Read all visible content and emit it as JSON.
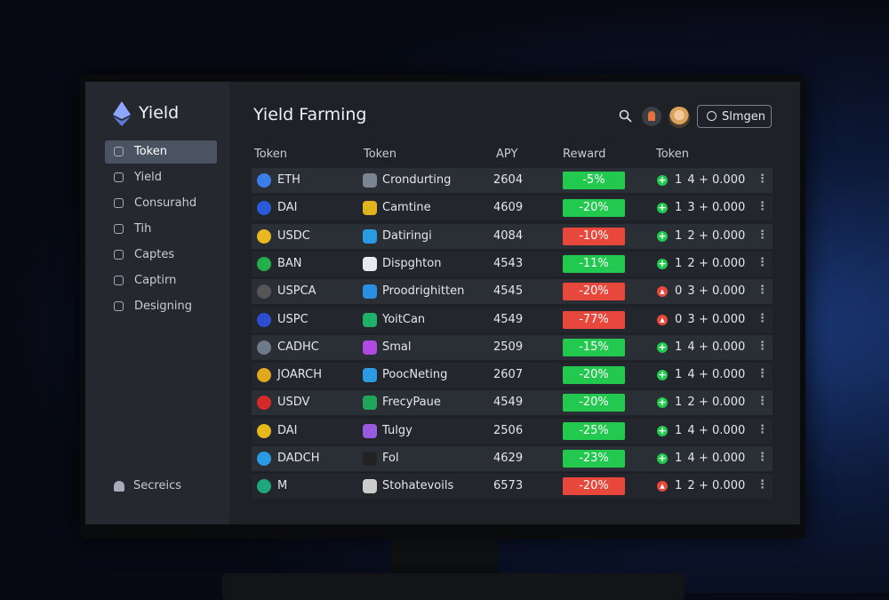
{
  "sidebar": {
    "brand": "Yield",
    "nav": [
      "Token",
      "Yield",
      "Consurahd",
      "Tih",
      "Captes",
      "Captirn",
      "Designing"
    ],
    "active": 0,
    "footer": "Secreics"
  },
  "header": {
    "title": "Yield Farming",
    "button": "Slmgen"
  },
  "table": {
    "columns": [
      "Token",
      "Token",
      "APY",
      "Reward",
      "Token"
    ],
    "rows": [
      {
        "token": "ETH",
        "pool": "Crondurting",
        "apy": 2604,
        "reward": "-5%",
        "reward_status": "positive",
        "trend": "up",
        "share": "1 4",
        "amount": "+ 0.000"
      },
      {
        "token": "DAI",
        "pool": "Camtine",
        "apy": 4609,
        "reward": "-20%",
        "reward_status": "positive",
        "trend": "up",
        "share": "1 3",
        "amount": "+ 0.000"
      },
      {
        "token": "USDC",
        "pool": "Datiringi",
        "apy": 4084,
        "reward": "-10%",
        "reward_status": "negative",
        "trend": "up",
        "share": "1 2",
        "amount": "+ 0.000"
      },
      {
        "token": "BAN",
        "pool": "Dispghton",
        "apy": 4543,
        "reward": "-11%",
        "reward_status": "positive",
        "trend": "up",
        "share": "1 2",
        "amount": "+ 0.000"
      },
      {
        "token": "USPCA",
        "pool": "Proodrighitten",
        "apy": 4545,
        "reward": "-20%",
        "reward_status": "negative",
        "trend": "down",
        "share": "0 3",
        "amount": "+ 0.000"
      },
      {
        "token": "USPC",
        "pool": "YoitCan",
        "apy": 4549,
        "reward": "-77%",
        "reward_status": "negative",
        "trend": "down",
        "share": "0 3",
        "amount": "+ 0.000"
      },
      {
        "token": "CADHC",
        "pool": "Smal",
        "apy": 2509,
        "reward": "-15%",
        "reward_status": "positive",
        "trend": "up",
        "share": "1 4",
        "amount": "+ 0.000"
      },
      {
        "token": "JOARCH",
        "pool": "PoocNeting",
        "apy": 2607,
        "reward": "-20%",
        "reward_status": "positive",
        "trend": "up",
        "share": "1 4",
        "amount": "+ 0.000"
      },
      {
        "token": "USDV",
        "pool": "FrecyPaue",
        "apy": 4549,
        "reward": "-20%",
        "reward_status": "positive",
        "trend": "up",
        "share": "1 2",
        "amount": "+ 0.000"
      },
      {
        "token": "DAI",
        "pool": "Tulgy",
        "apy": 2506,
        "reward": "-25%",
        "reward_status": "positive",
        "trend": "up",
        "share": "1 4",
        "amount": "+ 0.000"
      },
      {
        "token": "DADCH",
        "pool": "Fol",
        "apy": 4629,
        "reward": "-23%",
        "reward_status": "positive",
        "trend": "up",
        "share": "1 4",
        "amount": "+ 0.000"
      },
      {
        "token": "M",
        "pool": "Stohatevoils",
        "apy": 6573,
        "reward": "-20%",
        "reward_status": "negative",
        "trend": "down",
        "share": "1 2",
        "amount": "+ 0.000"
      }
    ]
  }
}
